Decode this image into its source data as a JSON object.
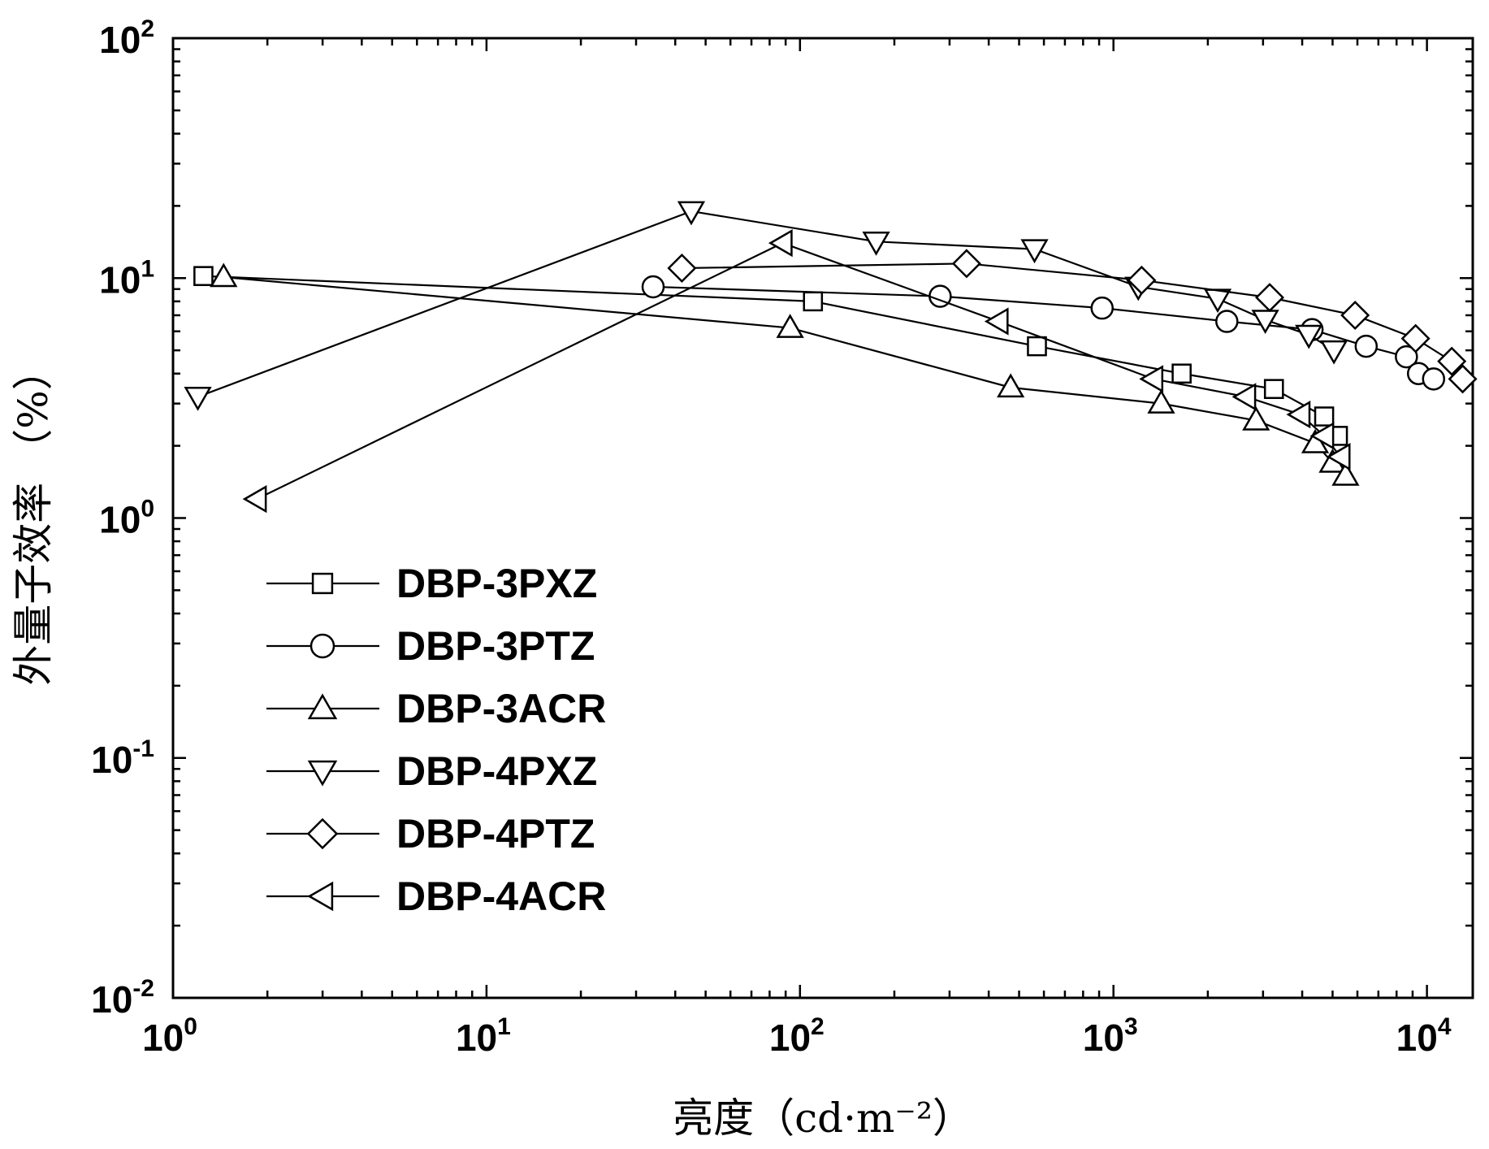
{
  "chart_data": {
    "type": "line",
    "xscale": "log",
    "yscale": "log",
    "xlabel": "亮度（cd·m⁻²）",
    "ylabel": "外量子效率 （%）",
    "xlim": [
      1,
      14000
    ],
    "ylim": [
      0.01,
      100
    ],
    "grid": false,
    "legend_position": "lower-left",
    "x_ticks": [
      {
        "value": 1,
        "base": "10",
        "exp": "0"
      },
      {
        "value": 10,
        "base": "10",
        "exp": "1"
      },
      {
        "value": 100,
        "base": "10",
        "exp": "2"
      },
      {
        "value": 1000,
        "base": "10",
        "exp": "3"
      },
      {
        "value": 10000,
        "base": "10",
        "exp": "4"
      }
    ],
    "y_ticks": [
      {
        "value": 0.01,
        "base": "10",
        "exp": "-2"
      },
      {
        "value": 0.1,
        "base": "10",
        "exp": "-1"
      },
      {
        "value": 1,
        "base": "10",
        "exp": "0"
      },
      {
        "value": 10,
        "base": "10",
        "exp": "1"
      },
      {
        "value": 100,
        "base": "10",
        "exp": "2"
      }
    ],
    "series": [
      {
        "name": "DBP-3PXZ",
        "marker": "square",
        "x": [
          1.25,
          110,
          570,
          1650,
          3250,
          4700,
          5200
        ],
        "y": [
          10.2,
          8.0,
          5.2,
          4.0,
          3.45,
          2.65,
          2.2
        ]
      },
      {
        "name": "DBP-3PTZ",
        "marker": "circle",
        "x": [
          34,
          280,
          920,
          2300,
          4300,
          6400,
          8600,
          9400,
          10500
        ],
        "y": [
          9.2,
          8.4,
          7.5,
          6.6,
          6.1,
          5.2,
          4.7,
          4.0,
          3.8
        ]
      },
      {
        "name": "DBP-3ACR",
        "marker": "triangle-up",
        "x": [
          1.45,
          93,
          470,
          1420,
          2850,
          4400,
          5000,
          5500
        ],
        "y": [
          10.1,
          6.2,
          3.5,
          3.0,
          2.55,
          2.05,
          1.7,
          1.5
        ]
      },
      {
        "name": "DBP-4PXZ",
        "marker": "triangle-down",
        "x": [
          1.2,
          45,
          175,
          560,
          1200,
          2150,
          3050,
          4200,
          5050
        ],
        "y": [
          3.2,
          19.0,
          14.2,
          13.2,
          9.2,
          8.2,
          6.7,
          5.8,
          5.0
        ]
      },
      {
        "name": "DBP-4PTZ",
        "marker": "diamond",
        "x": [
          42,
          340,
          1230,
          3150,
          5900,
          9200,
          12000,
          13000
        ],
        "y": [
          11.0,
          11.5,
          9.8,
          8.3,
          7.0,
          5.6,
          4.5,
          3.8
        ]
      },
      {
        "name": "DBP-4ACR",
        "marker": "triangle-left",
        "x": [
          1.85,
          88,
          430,
          1340,
          2650,
          3950,
          4700,
          5300
        ],
        "y": [
          1.2,
          14.0,
          6.6,
          3.8,
          3.2,
          2.7,
          2.2,
          1.8
        ]
      }
    ]
  }
}
